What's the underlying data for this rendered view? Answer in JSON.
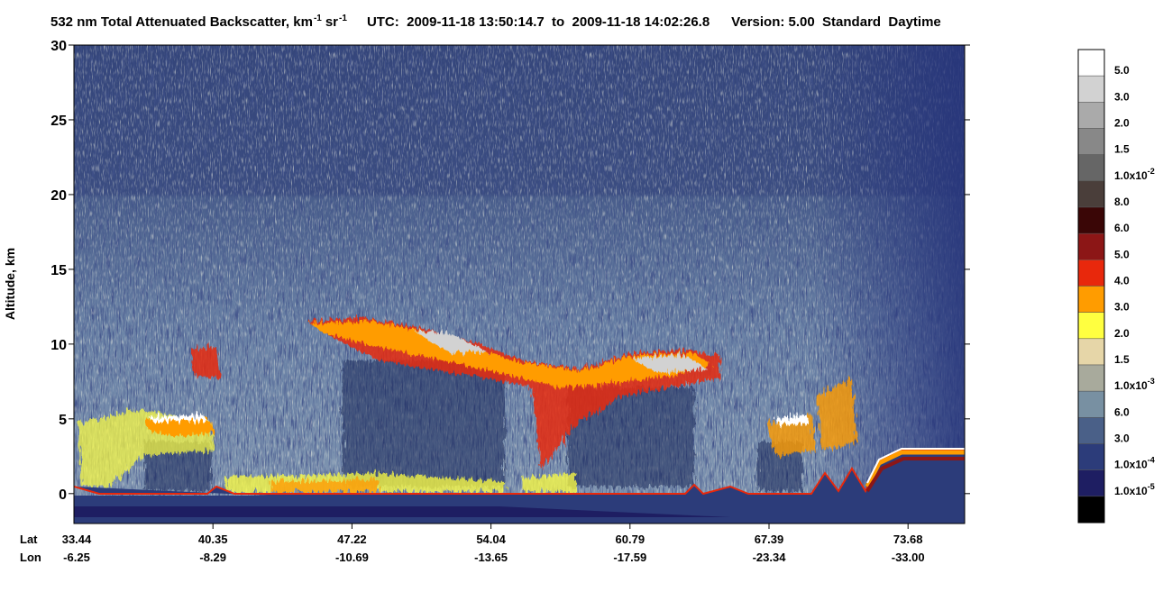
{
  "chart_data": {
    "type": "curtain",
    "title_parts": [
      {
        "text": "532 nm Total Attenuated Backscatter, km"
      },
      {
        "sup": "-1"
      },
      {
        "text": "sr"
      },
      {
        "sup": "-1"
      },
      {
        "text": "UTC:  2009-11-18 13:50:14.7  to  2009-11-18 14:02:26.8"
      },
      {
        "text": "Version: 5.00  Standard  Daytime"
      }
    ],
    "ylabel": "Altitude, km",
    "ylim": [
      -2,
      30
    ],
    "yticks": [
      0,
      5,
      10,
      15,
      20,
      25,
      30
    ],
    "xtick_rows": [
      {
        "name": "Lat",
        "labels": [
          "33.44",
          "40.35",
          "47.22",
          "54.04",
          "60.79",
          "67.39",
          "73.68"
        ]
      },
      {
        "name": "Lon",
        "labels": [
          "-6.25",
          "-8.29",
          "-10.69",
          "-13.65",
          "-17.59",
          "-23.34",
          "-33.00"
        ]
      }
    ],
    "colorbar": {
      "colors": [
        "#ffffff",
        "#d2d2d2",
        "#aaaaaa",
        "#888888",
        "#666666",
        "#4a3e3a",
        "#3a0606",
        "#8c1616",
        "#e8280c",
        "#ff9c00",
        "#ffff40",
        "#e6d6a8",
        "#a8aa9c",
        "#7890a2",
        "#4a6088",
        "#2c3c7a",
        "#1e1e62",
        "#000000"
      ],
      "labels": [
        {
          "text": "5.0"
        },
        {
          "text": "3.0"
        },
        {
          "text": "2.0"
        },
        {
          "text": "1.5"
        },
        {
          "text": "1.0x10",
          "sup": "-2"
        },
        {
          "text": "8.0"
        },
        {
          "text": "6.0"
        },
        {
          "text": "5.0"
        },
        {
          "text": "4.0"
        },
        {
          "text": "3.0"
        },
        {
          "text": "2.0"
        },
        {
          "text": "1.5"
        },
        {
          "text": "1.0x10",
          "sup": "-3"
        },
        {
          "text": "6.0"
        },
        {
          "text": "3.0"
        },
        {
          "text": "1.0x10",
          "sup": "-4"
        },
        {
          "text": "1.0x10",
          "sup": "-5"
        }
      ]
    }
  }
}
